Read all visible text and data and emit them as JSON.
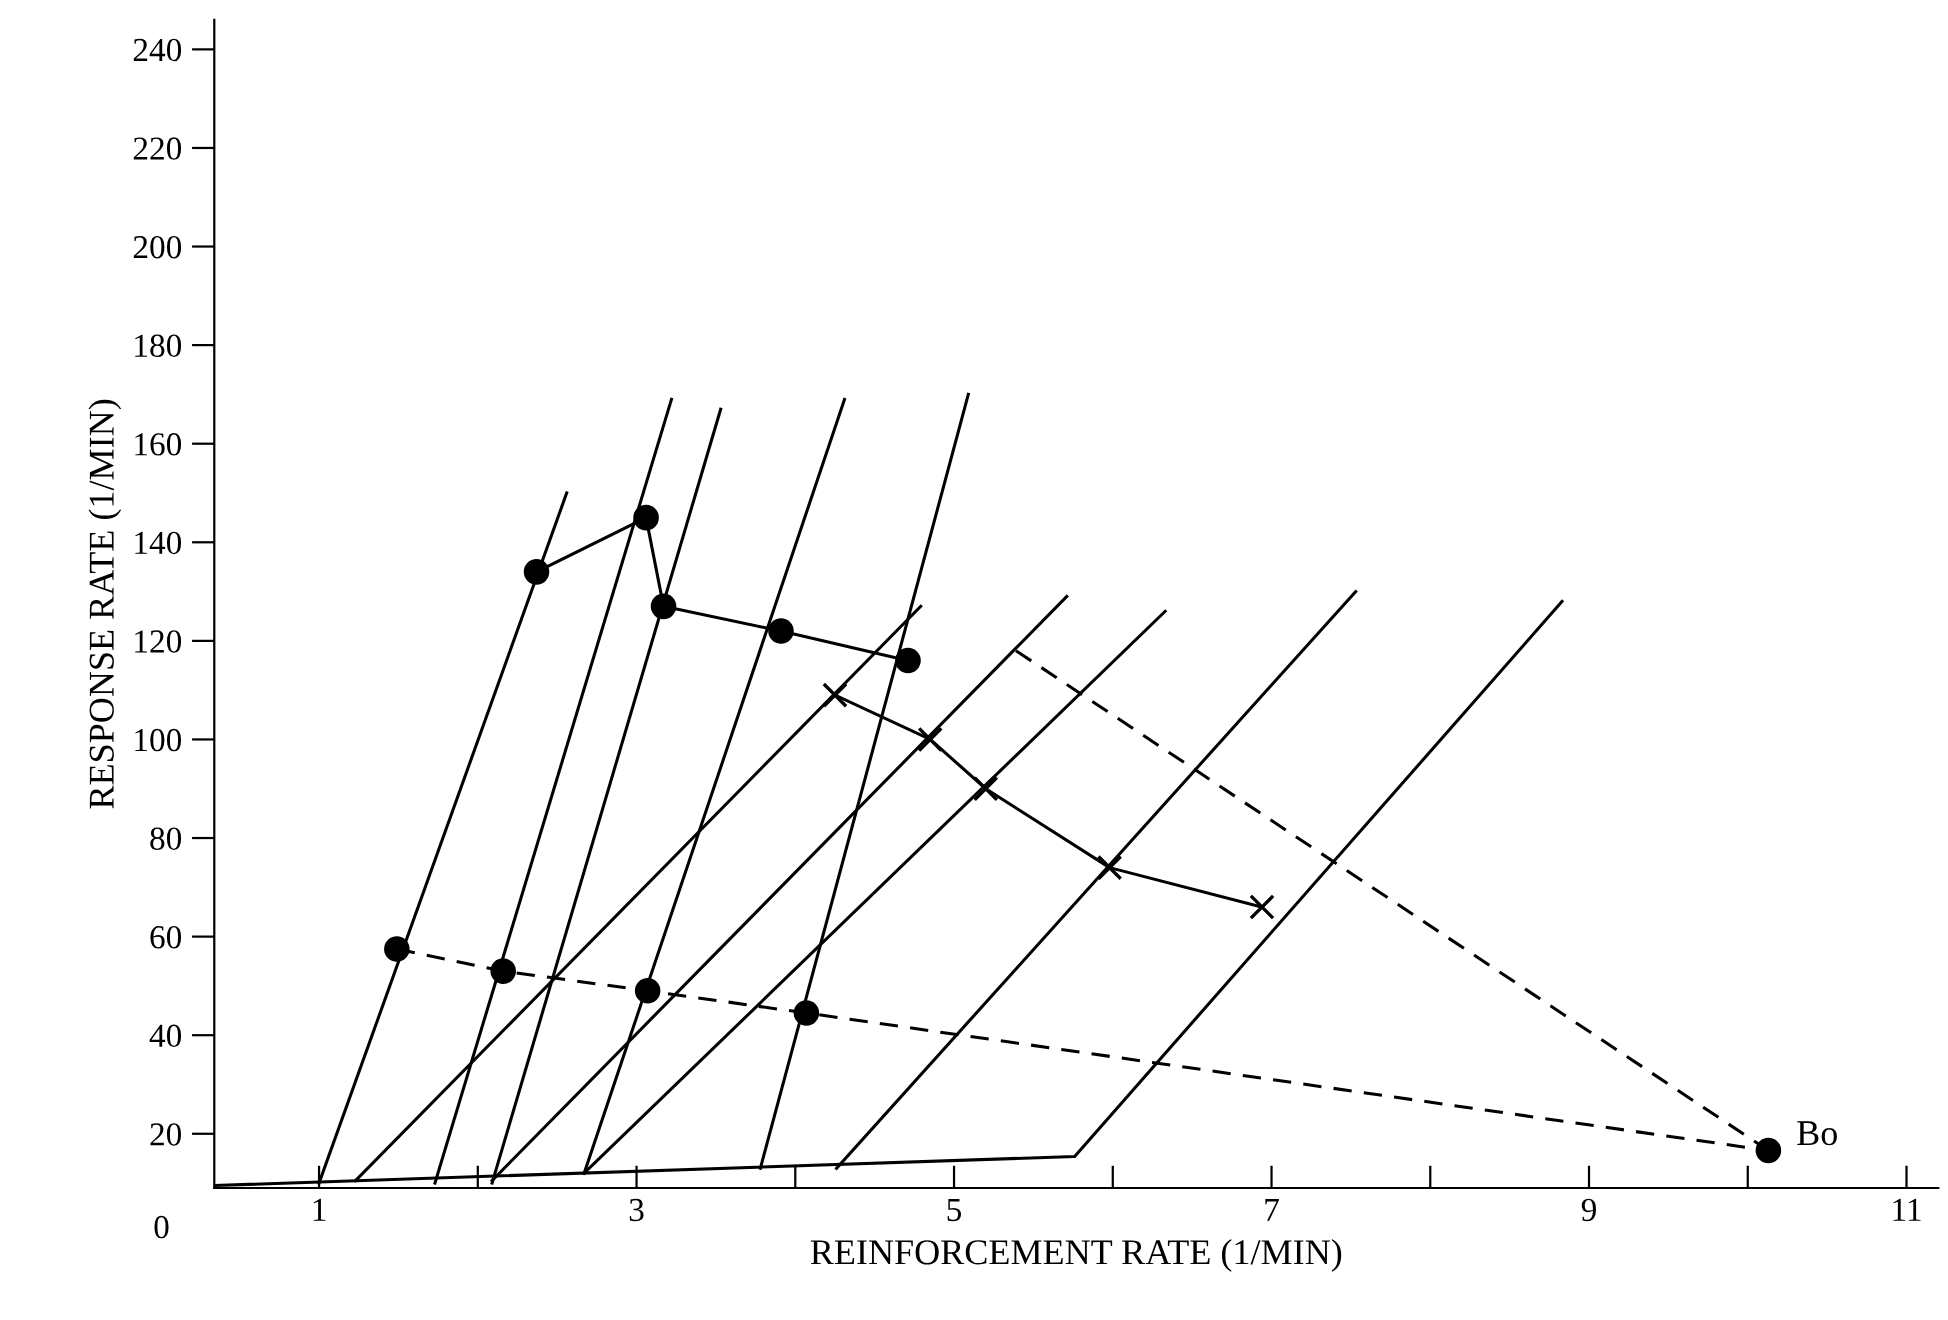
{
  "chart_data": {
    "type": "line",
    "xlabel": "REINFORCEMENT RATE (1/MIN)",
    "ylabel": "RESPONSE RATE (1/MIN)",
    "xlim": [
      0.34,
      11.2
    ],
    "ylim": [
      9,
      246
    ],
    "xticks": [
      1,
      {
        "value": 2,
        "label": null
      },
      3,
      {
        "value": 4,
        "label": null
      },
      5,
      {
        "value": 6,
        "label": null
      },
      7,
      {
        "value": 8,
        "label": null
      },
      9,
      {
        "value": 10,
        "label": null
      },
      11
    ],
    "yticks": [
      20,
      40,
      60,
      80,
      100,
      120,
      140,
      160,
      180,
      200,
      220,
      240
    ],
    "grid": false,
    "legend": false,
    "series": [
      {
        "color": "#000000",
        "x": [
          2.37,
          3.06,
          3.17,
          3.91,
          4.71
        ],
        "values": [
          134,
          145,
          127,
          122,
          116
        ],
        "marker": "circle",
        "line_style": "solid"
      },
      {
        "color": "#000000",
        "x": [
          4.25,
          4.85,
          5.2,
          5.98,
          6.94
        ],
        "values": [
          109,
          100,
          90,
          74,
          66
        ],
        "marker": "cross",
        "line_style": "solid"
      },
      {
        "color": "#000000",
        "x": [
          1.49,
          2.16,
          3.07,
          4.07,
          10.13
        ],
        "values": [
          57.5,
          53,
          49,
          44.5,
          16.6
        ],
        "marker": "circle",
        "line_style": "dashed"
      },
      {
        "color": "#000000",
        "x": [
          5.39,
          10.13
        ],
        "values": [
          118,
          16.6
        ],
        "marker": "none",
        "line_style": "dashed"
      },
      {
        "color": "#000000",
        "x": [
          1.0,
          2.56
        ],
        "values": [
          10,
          150
        ],
        "marker": "none",
        "line_style": "solid"
      },
      {
        "color": "#000000",
        "x": [
          1.73,
          3.22
        ],
        "values": [
          10,
          169
        ],
        "marker": "none",
        "line_style": "solid"
      },
      {
        "color": "#000000",
        "x": [
          2.09,
          3.53
        ],
        "values": [
          10,
          167
        ],
        "marker": "none",
        "line_style": "solid"
      },
      {
        "color": "#000000",
        "x": [
          2.67,
          4.31
        ],
        "values": [
          12,
          169
        ],
        "marker": "none",
        "line_style": "solid"
      },
      {
        "color": "#000000",
        "x": [
          3.78,
          5.09
        ],
        "values": [
          13,
          170
        ],
        "marker": "none",
        "line_style": "solid"
      },
      {
        "color": "#000000",
        "x": [
          1.23,
          4.79
        ],
        "values": [
          10.5,
          127
        ],
        "marker": "none",
        "line_style": "solid"
      },
      {
        "color": "#000000",
        "x": [
          2.09,
          5.71
        ],
        "values": [
          10.5,
          129
        ],
        "marker": "none",
        "line_style": "solid"
      },
      {
        "color": "#000000",
        "x": [
          2.67,
          6.33
        ],
        "values": [
          12,
          126
        ],
        "marker": "none",
        "line_style": "solid"
      },
      {
        "color": "#000000",
        "x": [
          4.26,
          7.53
        ],
        "values": [
          13,
          130
        ],
        "marker": "none",
        "line_style": "solid"
      },
      {
        "color": "#000000",
        "x": [
          0.34,
          5.76,
          8.83
        ],
        "values": [
          9.5,
          15.4,
          128
        ],
        "marker": "none",
        "line_style": "solid"
      }
    ],
    "annotations": [
      {
        "text": "Bo",
        "x": 10.13,
        "y": 16.6
      },
      "0"
    ]
  }
}
